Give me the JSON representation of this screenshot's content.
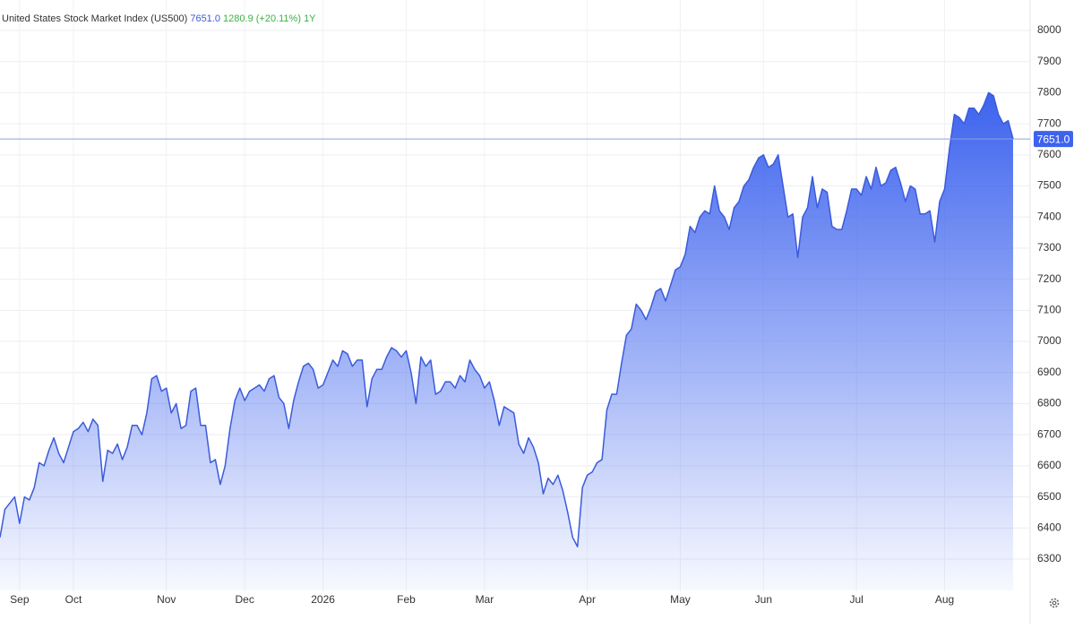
{
  "chart_data": {
    "type": "area",
    "title": "United States Stock Market Index (US500)",
    "price": "7651.0",
    "change": "1280.9 (+20.11%)",
    "period": "1Y",
    "color": "#3b5bdb",
    "categories": [
      null,
      null,
      null,
      null,
      "Sep",
      null,
      null,
      null,
      null,
      null,
      null,
      null,
      null,
      null,
      null,
      "Oct",
      null,
      null,
      null,
      null,
      null,
      null,
      null,
      null,
      null,
      null,
      null,
      null,
      null,
      null,
      null,
      null,
      null,
      null,
      "Nov",
      null,
      null,
      null,
      null,
      null,
      null,
      null,
      null,
      null,
      null,
      null,
      null,
      null,
      null,
      null,
      "Dec",
      null,
      null,
      null,
      null,
      null,
      null,
      null,
      null,
      null,
      null,
      null,
      null,
      null,
      null,
      null,
      "2026",
      null,
      null,
      null,
      null,
      null,
      null,
      null,
      null,
      null,
      null,
      null,
      null,
      null,
      null,
      null,
      null,
      "Feb",
      null,
      null,
      null,
      null,
      null,
      null,
      null,
      null,
      null,
      null,
      null,
      null,
      null,
      null,
      null,
      "Mar",
      null,
      null,
      null,
      null,
      null,
      null,
      null,
      null,
      null,
      null,
      null,
      null,
      null,
      null,
      null,
      null,
      null,
      null,
      null,
      null,
      "Apr",
      null,
      null,
      null,
      null,
      null,
      null,
      null,
      null,
      null,
      null,
      null,
      null,
      null,
      null,
      null,
      null,
      null,
      null,
      "May",
      null,
      null,
      null,
      null,
      null,
      null,
      null,
      null,
      null,
      null,
      null,
      null,
      null,
      null,
      null,
      null,
      "Jun",
      null,
      null,
      null,
      null,
      null,
      null,
      null,
      null,
      null,
      null,
      null,
      null,
      null,
      null,
      null,
      null,
      null,
      null,
      "Jul",
      null,
      null,
      null,
      null,
      null,
      null,
      null,
      null,
      null,
      null,
      null,
      null,
      null,
      null,
      null,
      null,
      null,
      "Aug",
      null,
      null,
      null,
      null,
      null,
      null,
      null,
      null,
      null,
      null,
      null,
      null,
      null,
      null
    ],
    "values": [
      6370,
      6460,
      6480,
      6500,
      6415,
      6500,
      6490,
      6530,
      6610,
      6600,
      6650,
      6690,
      6640,
      6610,
      6660,
      6710,
      6720,
      6740,
      6710,
      6750,
      6730,
      6550,
      6650,
      6640,
      6670,
      6620,
      6660,
      6730,
      6730,
      6700,
      6770,
      6880,
      6890,
      6840,
      6850,
      6770,
      6800,
      6720,
      6730,
      6840,
      6850,
      6730,
      6730,
      6610,
      6620,
      6540,
      6600,
      6720,
      6810,
      6850,
      6810,
      6840,
      6850,
      6860,
      6840,
      6880,
      6890,
      6820,
      6800,
      6720,
      6810,
      6870,
      6920,
      6930,
      6910,
      6850,
      6860,
      6900,
      6940,
      6920,
      6970,
      6960,
      6920,
      6940,
      6940,
      6790,
      6880,
      6910,
      6910,
      6950,
      6980,
      6970,
      6950,
      6970,
      6900,
      6800,
      6950,
      6920,
      6940,
      6830,
      6840,
      6870,
      6870,
      6850,
      6890,
      6870,
      6940,
      6910,
      6890,
      6850,
      6870,
      6810,
      6730,
      6790,
      6780,
      6770,
      6670,
      6640,
      6690,
      6660,
      6610,
      6510,
      6560,
      6540,
      6570,
      6520,
      6450,
      6370,
      6340,
      6530,
      6570,
      6580,
      6610,
      6620,
      6780,
      6830,
      6830,
      6930,
      7020,
      7040,
      7120,
      7100,
      7070,
      7110,
      7160,
      7170,
      7130,
      7180,
      7230,
      7240,
      7280,
      7370,
      7350,
      7400,
      7420,
      7410,
      7500,
      7420,
      7400,
      7360,
      7430,
      7450,
      7500,
      7520,
      7560,
      7590,
      7600,
      7560,
      7570,
      7600,
      7500,
      7400,
      7410,
      7270,
      7400,
      7430,
      7530,
      7430,
      7490,
      7480,
      7370,
      7360,
      7360,
      7420,
      7490,
      7490,
      7470,
      7530,
      7490,
      7560,
      7500,
      7510,
      7550,
      7560,
      7510,
      7450,
      7500,
      7490,
      7410,
      7410,
      7420,
      7320,
      7450,
      7490,
      7620,
      7730,
      7720,
      7700,
      7750,
      7750,
      7730,
      7760,
      7800,
      7790,
      7730,
      7700,
      7710,
      7651
    ],
    "ylim": [
      6200,
      8100
    ],
    "yticks": [
      6300,
      6400,
      6500,
      6600,
      6700,
      6800,
      6900,
      7000,
      7100,
      7200,
      7300,
      7400,
      7500,
      7600,
      7700,
      7800,
      7900,
      8000
    ],
    "grid": true
  }
}
